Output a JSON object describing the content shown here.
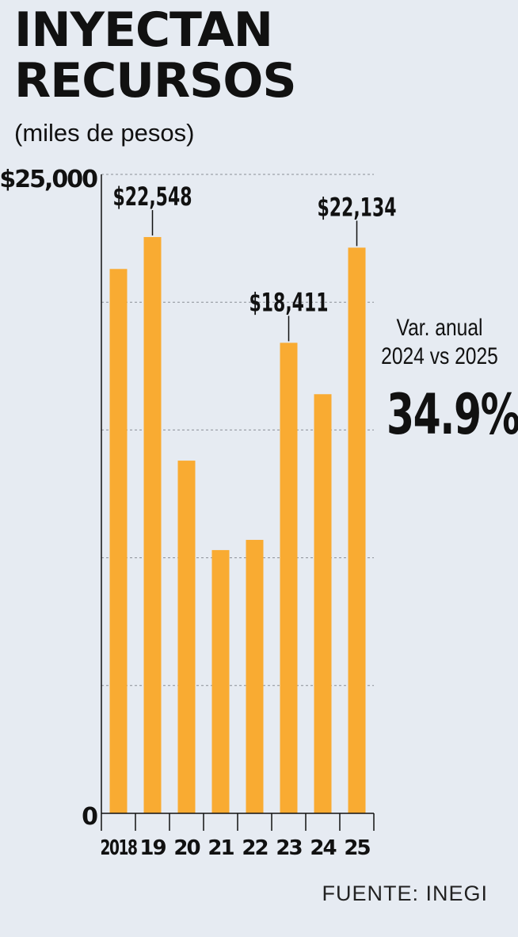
{
  "header": {
    "title_line1": "INYECTAN",
    "title_line2": "RECURSOS",
    "subtitle": "(miles de pesos)"
  },
  "annual_variation": {
    "label_line1": "Var. anual",
    "label_line2": "2024 vs 2025",
    "value": "34.9%"
  },
  "source": "FUENTE: INEGI",
  "colors": {
    "bar": "#f9ab32",
    "background": "#e6ebf2",
    "text": "#111111"
  },
  "chart_data": {
    "type": "bar",
    "categories": [
      "2018",
      "19",
      "20",
      "21",
      "22",
      "23",
      "24",
      "25"
    ],
    "values": [
      21300,
      22548,
      13800,
      10300,
      10700,
      18411,
      16400,
      22134
    ],
    "ylim": [
      0,
      25000
    ],
    "ytick_labels": [
      {
        "value": 0,
        "label": "0"
      },
      {
        "value": 25000,
        "label": "$25,000"
      }
    ],
    "gridlines": [
      5000,
      10000,
      15000,
      20000,
      25000
    ],
    "annotations": [
      {
        "index": 1,
        "label": "$22,548"
      },
      {
        "index": 5,
        "label": "$18,411"
      },
      {
        "index": 7,
        "label": "$22,134"
      }
    ],
    "grid": true,
    "legend": "none"
  }
}
